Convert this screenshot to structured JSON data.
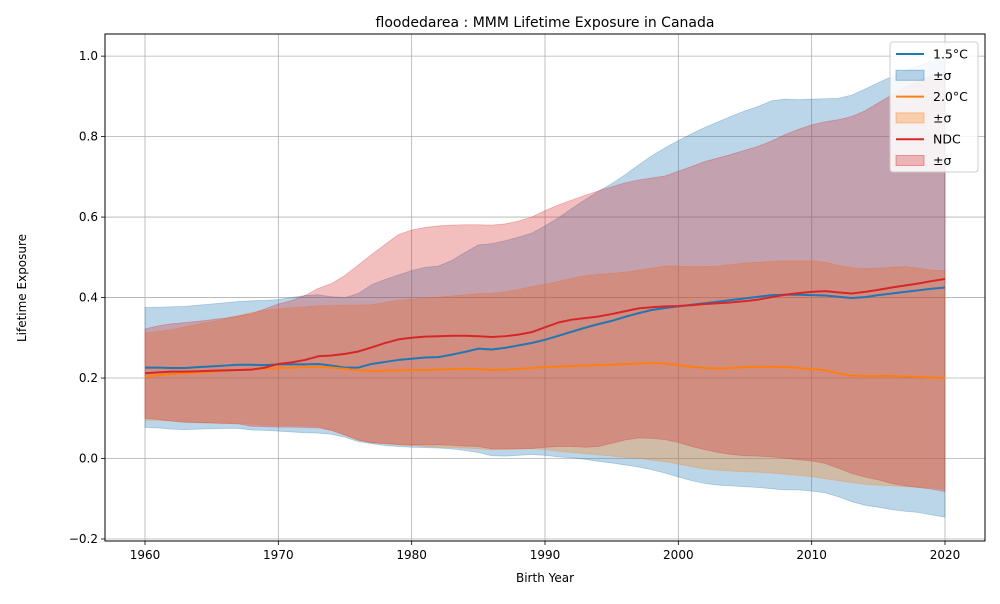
{
  "chart_data": {
    "type": "line",
    "title": "floodedarea : MMM Lifetime Exposure in Canada",
    "xlabel": "Birth Year",
    "ylabel": "Lifetime Exposure",
    "xlim": [
      1957,
      2023
    ],
    "ylim": [
      -0.205,
      1.055
    ],
    "xticks": [
      1960,
      1970,
      1980,
      1990,
      2000,
      2010,
      2020
    ],
    "yticks": [
      -0.2,
      0.0,
      0.2,
      0.4,
      0.6,
      0.8,
      1.0
    ],
    "ytick_labels": [
      "−0.2",
      "0.0",
      "0.2",
      "0.4",
      "0.6",
      "0.8",
      "1.0"
    ],
    "grid": true,
    "legend_position": "top-right",
    "legend": [
      "1.5°C",
      "±σ",
      "2.0°C",
      "±σ",
      "NDC",
      "±σ"
    ],
    "x": [
      1960,
      1961,
      1962,
      1963,
      1964,
      1965,
      1966,
      1967,
      1968,
      1969,
      1970,
      1971,
      1972,
      1973,
      1974,
      1975,
      1976,
      1977,
      1978,
      1979,
      1980,
      1981,
      1982,
      1983,
      1984,
      1985,
      1986,
      1987,
      1988,
      1989,
      1990,
      1991,
      1992,
      1993,
      1994,
      1995,
      1996,
      1997,
      1998,
      1999,
      2000,
      2001,
      2002,
      2003,
      2004,
      2005,
      2006,
      2007,
      2008,
      2009,
      2010,
      2011,
      2012,
      2013,
      2014,
      2015,
      2016,
      2017,
      2018,
      2019,
      2020
    ],
    "series": [
      {
        "name": "1.5°C",
        "band_label": "±σ",
        "color": "#1f77b4",
        "values": [
          0.226,
          0.226,
          0.225,
          0.225,
          0.227,
          0.229,
          0.231,
          0.233,
          0.233,
          0.232,
          0.234,
          0.234,
          0.234,
          0.235,
          0.231,
          0.226,
          0.226,
          0.235,
          0.24,
          0.245,
          0.248,
          0.251,
          0.252,
          0.258,
          0.265,
          0.273,
          0.271,
          0.275,
          0.281,
          0.287,
          0.295,
          0.305,
          0.315,
          0.325,
          0.334,
          0.342,
          0.352,
          0.361,
          0.369,
          0.374,
          0.378,
          0.382,
          0.386,
          0.39,
          0.394,
          0.398,
          0.402,
          0.406,
          0.407,
          0.407,
          0.406,
          0.405,
          0.402,
          0.399,
          0.401,
          0.406,
          0.41,
          0.414,
          0.418,
          0.422,
          0.425
        ],
        "upper": [
          0.376,
          0.376,
          0.377,
          0.378,
          0.381,
          0.384,
          0.387,
          0.39,
          0.392,
          0.393,
          0.395,
          0.4,
          0.405,
          0.407,
          0.402,
          0.4,
          0.41,
          0.432,
          0.445,
          0.456,
          0.467,
          0.475,
          0.478,
          0.492,
          0.512,
          0.531,
          0.534,
          0.541,
          0.55,
          0.56,
          0.578,
          0.598,
          0.621,
          0.643,
          0.664,
          0.683,
          0.705,
          0.729,
          0.752,
          0.772,
          0.79,
          0.807,
          0.823,
          0.837,
          0.851,
          0.864,
          0.875,
          0.889,
          0.893,
          0.892,
          0.893,
          0.894,
          0.895,
          0.903,
          0.918,
          0.934,
          0.949,
          0.963,
          0.976,
          0.987,
          0.995
        ],
        "lower": [
          0.077,
          0.076,
          0.073,
          0.072,
          0.073,
          0.074,
          0.075,
          0.075,
          0.071,
          0.07,
          0.068,
          0.066,
          0.064,
          0.063,
          0.06,
          0.053,
          0.042,
          0.037,
          0.032,
          0.03,
          0.028,
          0.027,
          0.026,
          0.024,
          0.02,
          0.015,
          0.007,
          0.006,
          0.008,
          0.01,
          0.008,
          0.004,
          0.002,
          -0.002,
          -0.007,
          -0.011,
          -0.016,
          -0.021,
          -0.028,
          -0.036,
          -0.046,
          -0.055,
          -0.062,
          -0.066,
          -0.068,
          -0.07,
          -0.072,
          -0.075,
          -0.078,
          -0.078,
          -0.081,
          -0.085,
          -0.095,
          -0.107,
          -0.116,
          -0.121,
          -0.127,
          -0.131,
          -0.134,
          -0.14,
          -0.146
        ]
      },
      {
        "name": "2.0°C",
        "band_label": "±σ",
        "color": "#ff7f0e",
        "values": [
          0.203,
          0.207,
          0.21,
          0.212,
          0.214,
          0.216,
          0.218,
          0.22,
          0.222,
          0.223,
          0.225,
          0.226,
          0.227,
          0.228,
          0.226,
          0.223,
          0.219,
          0.218,
          0.218,
          0.219,
          0.22,
          0.22,
          0.221,
          0.222,
          0.223,
          0.222,
          0.22,
          0.221,
          0.223,
          0.225,
          0.227,
          0.229,
          0.23,
          0.231,
          0.232,
          0.233,
          0.235,
          0.236,
          0.237,
          0.236,
          0.232,
          0.228,
          0.225,
          0.224,
          0.225,
          0.227,
          0.228,
          0.228,
          0.227,
          0.225,
          0.222,
          0.219,
          0.212,
          0.206,
          0.205,
          0.205,
          0.205,
          0.204,
          0.203,
          0.201,
          0.2
        ],
        "upper": [
          0.312,
          0.316,
          0.32,
          0.327,
          0.334,
          0.34,
          0.347,
          0.355,
          0.363,
          0.368,
          0.372,
          0.375,
          0.377,
          0.38,
          0.38,
          0.381,
          0.381,
          0.382,
          0.388,
          0.393,
          0.396,
          0.398,
          0.401,
          0.404,
          0.407,
          0.41,
          0.41,
          0.414,
          0.42,
          0.427,
          0.433,
          0.44,
          0.448,
          0.454,
          0.458,
          0.46,
          0.463,
          0.468,
          0.473,
          0.478,
          0.478,
          0.477,
          0.477,
          0.478,
          0.482,
          0.486,
          0.488,
          0.49,
          0.491,
          0.491,
          0.491,
          0.488,
          0.48,
          0.474,
          0.472,
          0.473,
          0.475,
          0.477,
          0.473,
          0.468,
          0.467
        ],
        "lower": [
          0.095,
          0.095,
          0.093,
          0.091,
          0.09,
          0.089,
          0.088,
          0.087,
          0.085,
          0.083,
          0.082,
          0.082,
          0.081,
          0.08,
          0.07,
          0.058,
          0.045,
          0.04,
          0.037,
          0.034,
          0.032,
          0.03,
          0.028,
          0.027,
          0.026,
          0.024,
          0.022,
          0.022,
          0.023,
          0.025,
          0.022,
          0.018,
          0.015,
          0.012,
          0.009,
          0.006,
          0.003,
          0.001,
          -0.004,
          -0.008,
          -0.014,
          -0.02,
          -0.026,
          -0.029,
          -0.031,
          -0.033,
          -0.034,
          -0.036,
          -0.039,
          -0.042,
          -0.045,
          -0.05,
          -0.055,
          -0.06,
          -0.064,
          -0.066,
          -0.068,
          -0.07,
          -0.071,
          -0.073,
          -0.076
        ]
      },
      {
        "name": "NDC",
        "band_label": "±σ",
        "color": "#d62728",
        "values": [
          0.212,
          0.214,
          0.216,
          0.216,
          0.217,
          0.218,
          0.219,
          0.22,
          0.221,
          0.226,
          0.235,
          0.239,
          0.245,
          0.254,
          0.256,
          0.26,
          0.266,
          0.276,
          0.287,
          0.296,
          0.3,
          0.303,
          0.304,
          0.305,
          0.305,
          0.304,
          0.302,
          0.304,
          0.308,
          0.314,
          0.326,
          0.338,
          0.345,
          0.349,
          0.353,
          0.359,
          0.366,
          0.373,
          0.376,
          0.378,
          0.379,
          0.381,
          0.384,
          0.386,
          0.388,
          0.391,
          0.395,
          0.401,
          0.407,
          0.411,
          0.414,
          0.416,
          0.413,
          0.41,
          0.414,
          0.419,
          0.425,
          0.43,
          0.435,
          0.441,
          0.446
        ],
        "upper": [
          0.322,
          0.33,
          0.335,
          0.338,
          0.341,
          0.345,
          0.349,
          0.354,
          0.36,
          0.372,
          0.384,
          0.393,
          0.405,
          0.423,
          0.435,
          0.455,
          0.481,
          0.507,
          0.532,
          0.556,
          0.568,
          0.574,
          0.578,
          0.58,
          0.581,
          0.581,
          0.58,
          0.583,
          0.59,
          0.6,
          0.616,
          0.63,
          0.642,
          0.654,
          0.665,
          0.675,
          0.685,
          0.692,
          0.697,
          0.702,
          0.714,
          0.726,
          0.738,
          0.747,
          0.756,
          0.766,
          0.776,
          0.789,
          0.805,
          0.818,
          0.829,
          0.837,
          0.842,
          0.85,
          0.864,
          0.884,
          0.903,
          0.922,
          0.938,
          0.951,
          0.96
        ],
        "lower": [
          0.1,
          0.097,
          0.093,
          0.09,
          0.089,
          0.088,
          0.087,
          0.086,
          0.08,
          0.079,
          0.078,
          0.078,
          0.077,
          0.076,
          0.07,
          0.058,
          0.046,
          0.039,
          0.037,
          0.035,
          0.034,
          0.034,
          0.034,
          0.033,
          0.031,
          0.03,
          0.024,
          0.024,
          0.025,
          0.025,
          0.028,
          0.03,
          0.03,
          0.028,
          0.03,
          0.038,
          0.046,
          0.051,
          0.05,
          0.047,
          0.04,
          0.03,
          0.022,
          0.015,
          0.01,
          0.007,
          0.006,
          0.004,
          0.001,
          -0.003,
          -0.006,
          -0.012,
          -0.024,
          -0.037,
          -0.046,
          -0.053,
          -0.062,
          -0.068,
          -0.072,
          -0.076,
          -0.082
        ]
      }
    ]
  }
}
